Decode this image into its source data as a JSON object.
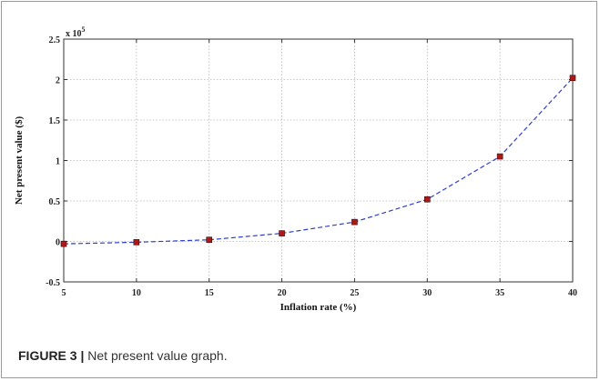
{
  "chart_data": {
    "type": "line",
    "x": [
      5,
      10,
      15,
      20,
      25,
      30,
      35,
      40
    ],
    "series": [
      {
        "values": [
          -3000,
          -1000,
          2000,
          10000,
          24000,
          52000,
          105000,
          202000
        ]
      }
    ],
    "xlabel": "Inflation rate (%)",
    "ylabel": "Net present value ($)",
    "xlim": [
      5,
      40
    ],
    "ylim": [
      -50000,
      250000
    ],
    "x_ticks": [
      "5",
      "10",
      "15",
      "20",
      "25",
      "30",
      "35",
      "40"
    ],
    "y_ticks": [
      "-0.5",
      "0",
      "0.5",
      "1",
      "1.5",
      "2",
      "2.5"
    ],
    "y_multiplier": "x 10",
    "y_multiplier_exponent": "5",
    "grid": true,
    "line_color": "#2e3fc7",
    "line_style": "dashed",
    "marker": "square",
    "marker_color": "#b01818"
  },
  "caption": {
    "label": "FIGURE 3 |",
    "text": " Net present value graph."
  }
}
